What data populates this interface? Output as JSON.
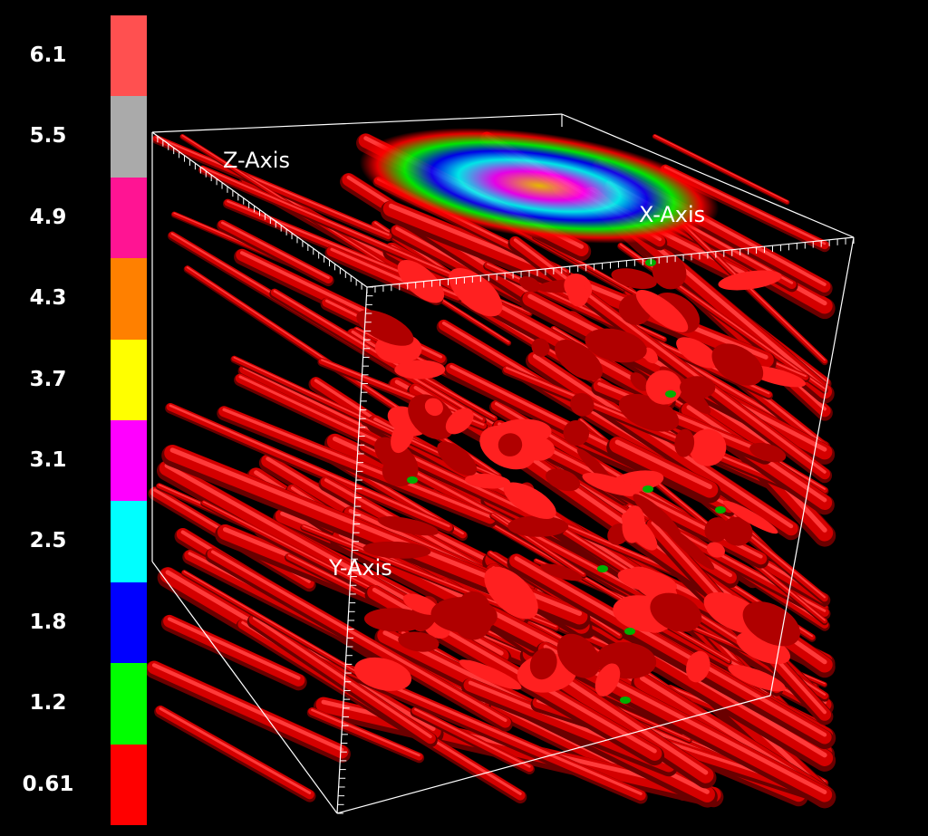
{
  "legend": {
    "labels": [
      "6.1",
      "5.5",
      "4.9",
      "4.3",
      "3.7",
      "3.1",
      "2.5",
      "1.8",
      "1.2",
      "0.61"
    ],
    "colors": [
      "#ff5050",
      "#aaaaaa",
      "#ff1493",
      "#ff8000",
      "#ffff00",
      "#ff00ff",
      "#00ffff",
      "#0000ff",
      "#00ff00",
      "#ff0000"
    ]
  },
  "axes": {
    "x_label": "X-Axis",
    "y_label": "Y-Axis",
    "z_label": "Z-Axis"
  },
  "colors": {
    "background": "#000000",
    "tube": "#e00000",
    "tube_highlight": "#ff3030",
    "tube_shadow": "#700000",
    "box": "#ffffff"
  }
}
